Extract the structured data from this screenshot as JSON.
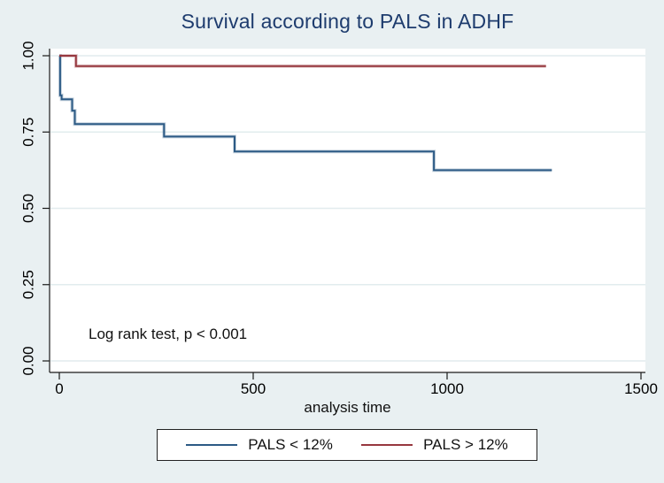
{
  "figure": {
    "title": "Survival according to PALS in ADHF",
    "annotation": "Log rank test, p < 0.001",
    "x_axis_label": "analysis time",
    "legend": {
      "items": [
        {
          "label": "PALS < 12%",
          "color": "#2c5a85"
        },
        {
          "label": "PALS > 12%",
          "color": "#97383f"
        }
      ]
    },
    "colors": {
      "background": "#e9f0f2",
      "plot_background": "#ffffff",
      "gridline": "#e2ecee",
      "axis": "#1a1a1a",
      "title": "#1e3c6e",
      "text": "#000000"
    }
  },
  "chart_data": {
    "type": "line",
    "subtype": "kaplan-meier-step",
    "title": "Survival according to PALS in ADHF",
    "xlabel": "analysis time",
    "ylabel": "",
    "xlim": [
      0,
      1500
    ],
    "ylim": [
      0.0,
      1.0
    ],
    "x_ticks": [
      {
        "v": 0,
        "label": "0"
      },
      {
        "v": 500,
        "label": "500"
      },
      {
        "v": 1000,
        "label": "1000"
      },
      {
        "v": 1500,
        "label": "1500"
      }
    ],
    "y_ticks": [
      {
        "v": 0.0,
        "label": "0.00"
      },
      {
        "v": 0.25,
        "label": "0.25"
      },
      {
        "v": 0.5,
        "label": "0.50"
      },
      {
        "v": 0.75,
        "label": "0.75"
      },
      {
        "v": 1.0,
        "label": "1.00"
      }
    ],
    "grid": "horizontal",
    "legend_position": "bottom",
    "annotation": "Log rank test, p < 0.001",
    "series": [
      {
        "name": "PALS < 12%",
        "color": "#2c5a85",
        "points": [
          [
            0,
            1.0
          ],
          [
            2,
            1.0
          ],
          [
            2,
            0.87
          ],
          [
            6,
            0.87
          ],
          [
            6,
            0.857
          ],
          [
            33,
            0.857
          ],
          [
            33,
            0.82
          ],
          [
            40,
            0.82
          ],
          [
            40,
            0.776
          ],
          [
            270,
            0.776
          ],
          [
            270,
            0.735
          ],
          [
            452,
            0.735
          ],
          [
            452,
            0.686
          ],
          [
            966,
            0.686
          ],
          [
            966,
            0.625
          ],
          [
            1270,
            0.625
          ]
        ]
      },
      {
        "name": "PALS > 12%",
        "color": "#97383f",
        "points": [
          [
            0,
            1.0
          ],
          [
            43,
            1.0
          ],
          [
            43,
            0.966
          ],
          [
            1255,
            0.966
          ]
        ]
      }
    ]
  }
}
